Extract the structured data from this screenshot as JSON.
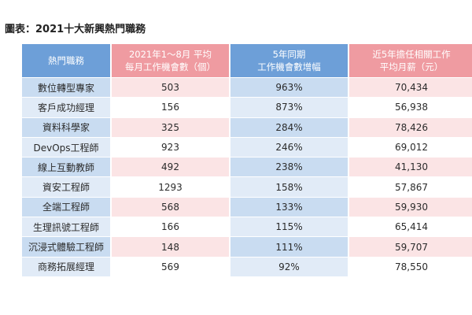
{
  "title": "圖表：2021十大新興熱門職務",
  "headers": {
    "job": "熱門職務",
    "openings_line1": "2021年1～8月 平均",
    "openings_line2": "每月工作機會數（個）",
    "growth_line1": "5年同期",
    "growth_line2": "工作機會數增幅",
    "salary_line1": "近5年擔任相關工作",
    "salary_line2": "平均月薪（元）"
  },
  "rows": [
    {
      "job": "數位轉型專家",
      "openings": "503",
      "growth": "963%",
      "salary": "70,434"
    },
    {
      "job": "客戶成功經理",
      "openings": "156",
      "growth": "873%",
      "salary": "56,938"
    },
    {
      "job": "資料科學家",
      "openings": "325",
      "growth": "284%",
      "salary": "78,426"
    },
    {
      "job": "DevOps工程師",
      "openings": "923",
      "growth": "246%",
      "salary": "69,012"
    },
    {
      "job": "線上互動教師",
      "openings": "492",
      "growth": "238%",
      "salary": "41,130"
    },
    {
      "job": "資安工程師",
      "openings": "1293",
      "growth": "158%",
      "salary": "57,867"
    },
    {
      "job": "全端工程師",
      "openings": "568",
      "growth": "133%",
      "salary": "59,930"
    },
    {
      "job": "生理訊號工程師",
      "openings": "166",
      "growth": "115%",
      "salary": "65,414"
    },
    {
      "job": "沉浸式體驗工程師",
      "openings": "148",
      "growth": "111%",
      "salary": "59,707"
    },
    {
      "job": "商務拓展經理",
      "openings": "569",
      "growth": "92%",
      "salary": "78,550"
    }
  ],
  "colors": {
    "header_blue": "#6d9fd8",
    "header_pink": "#ef9ba1",
    "cell_blue": "#c9dcf1",
    "cell_pink": "#fbe4e5"
  }
}
